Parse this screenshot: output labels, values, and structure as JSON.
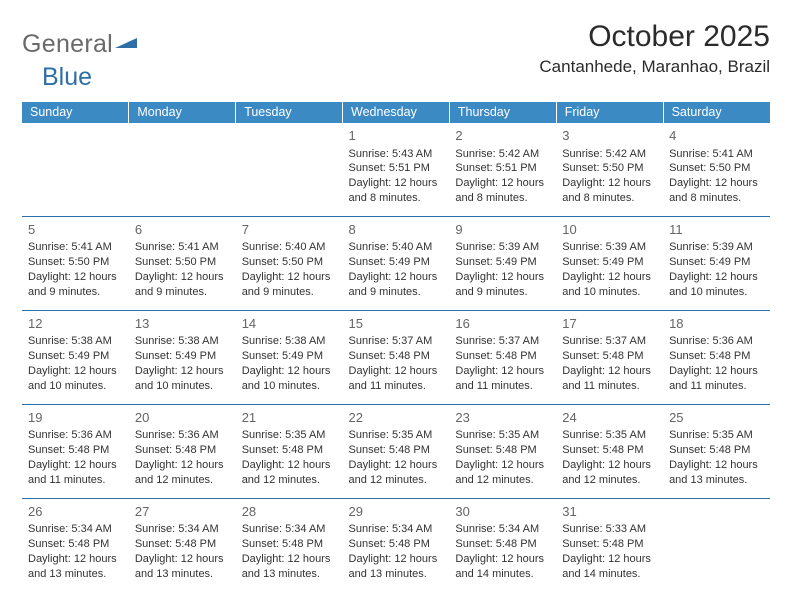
{
  "logo": {
    "part1": "General",
    "part2": "Blue"
  },
  "title": "October 2025",
  "location": "Cantanhede, Maranhao, Brazil",
  "colors": {
    "header_bg": "#3b8ac4",
    "header_text": "#ffffff",
    "row_border": "#2f6fa7",
    "daynum": "#656565",
    "body_text": "#333333",
    "logo_gray": "#6a6a6a",
    "logo_blue": "#2f6fa7",
    "page_bg": "#ffffff"
  },
  "weekdays": [
    "Sunday",
    "Monday",
    "Tuesday",
    "Wednesday",
    "Thursday",
    "Friday",
    "Saturday"
  ],
  "weeks": [
    [
      null,
      null,
      null,
      {
        "d": "1",
        "sr": "5:43 AM",
        "ss": "5:51 PM",
        "dl": "12 hours and 8 minutes."
      },
      {
        "d": "2",
        "sr": "5:42 AM",
        "ss": "5:51 PM",
        "dl": "12 hours and 8 minutes."
      },
      {
        "d": "3",
        "sr": "5:42 AM",
        "ss": "5:50 PM",
        "dl": "12 hours and 8 minutes."
      },
      {
        "d": "4",
        "sr": "5:41 AM",
        "ss": "5:50 PM",
        "dl": "12 hours and 8 minutes."
      }
    ],
    [
      {
        "d": "5",
        "sr": "5:41 AM",
        "ss": "5:50 PM",
        "dl": "12 hours and 9 minutes."
      },
      {
        "d": "6",
        "sr": "5:41 AM",
        "ss": "5:50 PM",
        "dl": "12 hours and 9 minutes."
      },
      {
        "d": "7",
        "sr": "5:40 AM",
        "ss": "5:50 PM",
        "dl": "12 hours and 9 minutes."
      },
      {
        "d": "8",
        "sr": "5:40 AM",
        "ss": "5:49 PM",
        "dl": "12 hours and 9 minutes."
      },
      {
        "d": "9",
        "sr": "5:39 AM",
        "ss": "5:49 PM",
        "dl": "12 hours and 9 minutes."
      },
      {
        "d": "10",
        "sr": "5:39 AM",
        "ss": "5:49 PM",
        "dl": "12 hours and 10 minutes."
      },
      {
        "d": "11",
        "sr": "5:39 AM",
        "ss": "5:49 PM",
        "dl": "12 hours and 10 minutes."
      }
    ],
    [
      {
        "d": "12",
        "sr": "5:38 AM",
        "ss": "5:49 PM",
        "dl": "12 hours and 10 minutes."
      },
      {
        "d": "13",
        "sr": "5:38 AM",
        "ss": "5:49 PM",
        "dl": "12 hours and 10 minutes."
      },
      {
        "d": "14",
        "sr": "5:38 AM",
        "ss": "5:49 PM",
        "dl": "12 hours and 10 minutes."
      },
      {
        "d": "15",
        "sr": "5:37 AM",
        "ss": "5:48 PM",
        "dl": "12 hours and 11 minutes."
      },
      {
        "d": "16",
        "sr": "5:37 AM",
        "ss": "5:48 PM",
        "dl": "12 hours and 11 minutes."
      },
      {
        "d": "17",
        "sr": "5:37 AM",
        "ss": "5:48 PM",
        "dl": "12 hours and 11 minutes."
      },
      {
        "d": "18",
        "sr": "5:36 AM",
        "ss": "5:48 PM",
        "dl": "12 hours and 11 minutes."
      }
    ],
    [
      {
        "d": "19",
        "sr": "5:36 AM",
        "ss": "5:48 PM",
        "dl": "12 hours and 11 minutes."
      },
      {
        "d": "20",
        "sr": "5:36 AM",
        "ss": "5:48 PM",
        "dl": "12 hours and 12 minutes."
      },
      {
        "d": "21",
        "sr": "5:35 AM",
        "ss": "5:48 PM",
        "dl": "12 hours and 12 minutes."
      },
      {
        "d": "22",
        "sr": "5:35 AM",
        "ss": "5:48 PM",
        "dl": "12 hours and 12 minutes."
      },
      {
        "d": "23",
        "sr": "5:35 AM",
        "ss": "5:48 PM",
        "dl": "12 hours and 12 minutes."
      },
      {
        "d": "24",
        "sr": "5:35 AM",
        "ss": "5:48 PM",
        "dl": "12 hours and 12 minutes."
      },
      {
        "d": "25",
        "sr": "5:35 AM",
        "ss": "5:48 PM",
        "dl": "12 hours and 13 minutes."
      }
    ],
    [
      {
        "d": "26",
        "sr": "5:34 AM",
        "ss": "5:48 PM",
        "dl": "12 hours and 13 minutes."
      },
      {
        "d": "27",
        "sr": "5:34 AM",
        "ss": "5:48 PM",
        "dl": "12 hours and 13 minutes."
      },
      {
        "d": "28",
        "sr": "5:34 AM",
        "ss": "5:48 PM",
        "dl": "12 hours and 13 minutes."
      },
      {
        "d": "29",
        "sr": "5:34 AM",
        "ss": "5:48 PM",
        "dl": "12 hours and 13 minutes."
      },
      {
        "d": "30",
        "sr": "5:34 AM",
        "ss": "5:48 PM",
        "dl": "12 hours and 14 minutes."
      },
      {
        "d": "31",
        "sr": "5:33 AM",
        "ss": "5:48 PM",
        "dl": "12 hours and 14 minutes."
      },
      null
    ]
  ],
  "labels": {
    "sunrise": "Sunrise:",
    "sunset": "Sunset:",
    "daylight": "Daylight:"
  }
}
